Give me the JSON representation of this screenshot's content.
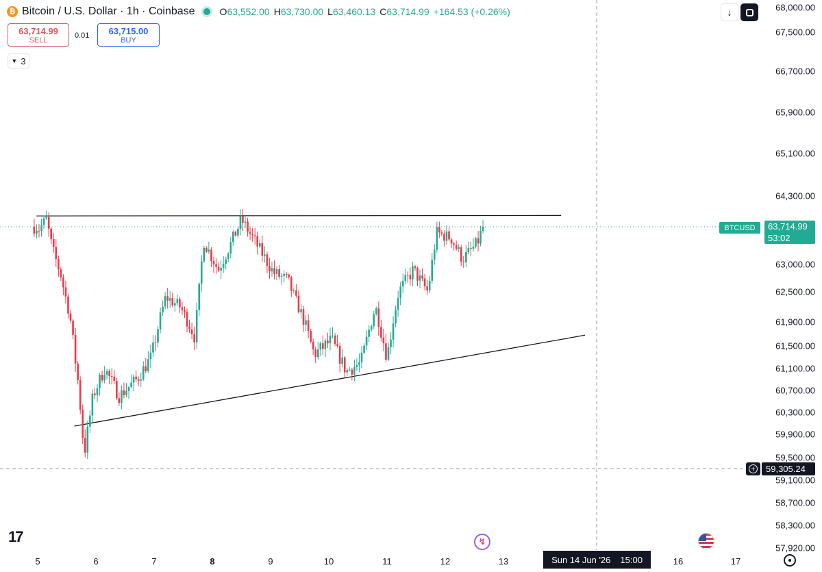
{
  "header": {
    "title": "Bitcoin / U.S. Dollar · 1h · Coinbase",
    "logo_glyph": "₿",
    "ohlc": [
      {
        "key": "O",
        "value": "63,552.00"
      },
      {
        "key": "H",
        "value": "63,730.00"
      },
      {
        "key": "L",
        "value": "63,460.13"
      },
      {
        "key": "C",
        "value": "63,714.99"
      }
    ],
    "change": "+164.53 (+0.26%)"
  },
  "trade": {
    "sell_price": "63,714.99",
    "sell_label": "SELL",
    "spread": "0.01",
    "buy_price": "63,715.00",
    "buy_label": "BUY"
  },
  "indicators_count": "3",
  "toolbar": {
    "down_icon": "arrow-down-icon",
    "fullscreen_icon": "fullscreen-icon"
  },
  "price_axis_labels": [
    "68,000.00",
    "67,500.00",
    "66,700.00",
    "65,900.00",
    "65,100.00",
    "64,300.00",
    "63,000.00",
    "62,500.00",
    "61,900.00",
    "61,500.00",
    "61,100.00",
    "60,700.00",
    "60,300.00",
    "59,900.00",
    "59,500.00",
    "59,100.00",
    "58,700.00",
    "58,300.00",
    "57,920.00"
  ],
  "time_axis_labels": [
    {
      "label": "5",
      "bold": false
    },
    {
      "label": "6",
      "bold": false
    },
    {
      "label": "7",
      "bold": false
    },
    {
      "label": "8",
      "bold": true
    },
    {
      "label": "9",
      "bold": false
    },
    {
      "label": "10",
      "bold": false
    },
    {
      "label": "11",
      "bold": false
    },
    {
      "label": "12",
      "bold": false
    },
    {
      "label": "13",
      "bold": false
    },
    {
      "label": "16",
      "bold": false
    },
    {
      "label": "17",
      "bold": false
    }
  ],
  "current_price": {
    "symbol": "BTCUSD",
    "price": "63,714.99",
    "countdown": "53:02"
  },
  "crosshair": {
    "price": "59,305.24",
    "time_date": "Sun 14 Jun '26",
    "time_clock": "15:00"
  },
  "colors": {
    "up": "#22ab94",
    "down": "#f23645",
    "trendline": "#131722",
    "grid_dash": "#9598a1"
  },
  "chart_data": {
    "type": "candlestick",
    "title": "Bitcoin / U.S. Dollar · 1h · Coinbase",
    "interval": "1h",
    "x_ticks": [
      "5",
      "6",
      "7",
      "8",
      "9",
      "10",
      "11",
      "12",
      "13",
      "16",
      "17"
    ],
    "ylim": [
      57920,
      68000
    ],
    "last_close": 63714.99,
    "waypoints": [
      {
        "day": 5.0,
        "price": 63650
      },
      {
        "day": 5.15,
        "price": 63850
      },
      {
        "day": 5.25,
        "price": 63300
      },
      {
        "day": 5.4,
        "price": 62800
      },
      {
        "day": 5.55,
        "price": 62050
      },
      {
        "day": 5.7,
        "price": 60800
      },
      {
        "day": 5.8,
        "price": 59550
      },
      {
        "day": 5.95,
        "price": 60600
      },
      {
        "day": 6.15,
        "price": 61100
      },
      {
        "day": 6.4,
        "price": 60600
      },
      {
        "day": 6.7,
        "price": 60900
      },
      {
        "day": 6.95,
        "price": 61300
      },
      {
        "day": 7.2,
        "price": 62400
      },
      {
        "day": 7.45,
        "price": 62200
      },
      {
        "day": 7.7,
        "price": 61650
      },
      {
        "day": 7.85,
        "price": 63450
      },
      {
        "day": 8.1,
        "price": 62900
      },
      {
        "day": 8.3,
        "price": 63350
      },
      {
        "day": 8.5,
        "price": 63850
      },
      {
        "day": 8.75,
        "price": 63400
      },
      {
        "day": 9.05,
        "price": 62850
      },
      {
        "day": 9.3,
        "price": 62700
      },
      {
        "day": 9.55,
        "price": 62000
      },
      {
        "day": 9.75,
        "price": 61350
      },
      {
        "day": 10.05,
        "price": 61600
      },
      {
        "day": 10.3,
        "price": 61050
      },
      {
        "day": 10.55,
        "price": 61200
      },
      {
        "day": 10.8,
        "price": 62200
      },
      {
        "day": 11.0,
        "price": 61300
      },
      {
        "day": 11.2,
        "price": 62500
      },
      {
        "day": 11.45,
        "price": 62900
      },
      {
        "day": 11.7,
        "price": 62500
      },
      {
        "day": 11.85,
        "price": 63600
      },
      {
        "day": 12.1,
        "price": 63500
      },
      {
        "day": 12.3,
        "price": 63100
      },
      {
        "day": 12.55,
        "price": 63400
      },
      {
        "day": 12.65,
        "price": 63715
      }
    ],
    "trendlines": [
      {
        "name": "resistance",
        "from": {
          "day": 4.98,
          "price": 63920
        },
        "to": {
          "day": 13.99,
          "price": 63930
        }
      },
      {
        "name": "support",
        "from": {
          "day": 5.63,
          "price": 60050
        },
        "to": {
          "day": 14.4,
          "price": 61680
        }
      }
    ],
    "reference_line": {
      "price": 63714.99,
      "style": "dotted"
    },
    "crosshair_line": {
      "price": 59305.24,
      "style": "dashed"
    }
  }
}
